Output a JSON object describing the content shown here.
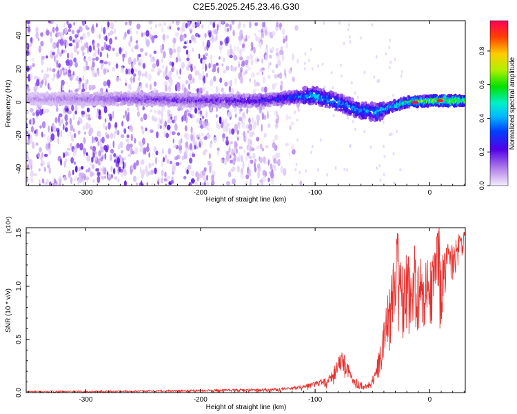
{
  "title": "C2E5.2025.245.23.46.G30",
  "chart_data": [
    {
      "type": "heatmap",
      "xlabel": "Height of straight line (km)",
      "ylabel": "Frequency (Hz)",
      "xlim": [
        -352,
        31
      ],
      "ylim": [
        -50,
        49
      ],
      "xticks": [
        -300,
        -200,
        -100,
        0
      ],
      "yticks": [
        -40,
        -20,
        0,
        20,
        40
      ],
      "colorbar": {
        "label": "Normalized spectral amplitude",
        "range": [
          0.0,
          0.98
        ],
        "ticks": [
          "0.0",
          "0.2",
          "0.4",
          "0.6",
          "0.8"
        ],
        "tick_values": [
          0.0,
          0.2,
          0.4,
          0.6,
          0.8
        ]
      },
      "ridge": {
        "description": "frequency trace of strongest amplitude",
        "height_km": [
          -352,
          -300,
          -250,
          -200,
          -150,
          -120,
          -100,
          -80,
          -60,
          -45,
          -35,
          -20,
          0,
          20,
          31
        ],
        "frequency_hz": [
          2,
          2,
          2,
          1,
          1,
          3,
          4,
          0,
          -5,
          -6,
          -3,
          0,
          1,
          1,
          1
        ],
        "amplitude": [
          0.08,
          0.12,
          0.18,
          0.2,
          0.25,
          0.35,
          0.45,
          0.4,
          0.4,
          0.45,
          0.5,
          0.55,
          0.7,
          0.75,
          0.65
        ],
        "peaks": [
          {
            "height_km": -13,
            "frequency_hz": 0,
            "amplitude": 0.98
          },
          {
            "height_km": 9,
            "frequency_hz": 1,
            "amplitude": 0.96
          }
        ]
      },
      "noise_region_km": [
        -352,
        -120
      ]
    },
    {
      "type": "line",
      "xlabel": "Height of straight line (km)",
      "ylabel": "SNR (10 * v/v)",
      "y_multiplier": "(x10⁴)",
      "xlim": [
        -352,
        31
      ],
      "ylim": [
        0,
        1.55
      ],
      "xticks": [
        -300,
        -200,
        -100,
        0
      ],
      "yticks": [
        "0.0",
        "0.5",
        "1.0",
        "1.5"
      ],
      "ytick_values": [
        0.0,
        0.5,
        1.0,
        1.5
      ],
      "series": [
        {
          "name": "SNR",
          "color": "#e8312e",
          "x": [
            -352,
            -300,
            -250,
            -200,
            -170,
            -150,
            -130,
            -120,
            -110,
            -100,
            -90,
            -85,
            -80,
            -76,
            -72,
            -68,
            -64,
            -60,
            -56,
            -52,
            -48,
            -45,
            -42,
            -40,
            -38,
            -35,
            -33,
            -30,
            -28,
            -25,
            -22,
            -20,
            -17,
            -14,
            -11,
            -8,
            -5,
            -3,
            -1,
            1,
            3,
            5,
            7,
            10,
            13,
            16,
            20,
            24,
            28,
            31
          ],
          "y": [
            0.01,
            0.01,
            0.015,
            0.02,
            0.03,
            0.025,
            0.03,
            0.04,
            0.06,
            0.09,
            0.12,
            0.18,
            0.28,
            0.33,
            0.22,
            0.14,
            0.09,
            0.06,
            0.05,
            0.06,
            0.12,
            0.25,
            0.35,
            0.55,
            0.75,
            1.0,
            0.85,
            1.05,
            1.52,
            0.9,
            0.75,
            1.1,
            0.85,
            1.3,
            0.7,
            1.2,
            0.45,
            0.9,
            1.0,
            0.7,
            1.1,
            1.4,
            1.57,
            0.6,
            1.15,
            1.35,
            1.2,
            1.4,
            1.45,
            1.5
          ],
          "envelope": {
            "x": [
              -352,
              -250,
              -150,
              -120,
              -100,
              -90,
              -85,
              -80,
              -76,
              -72,
              -66,
              -60,
              -55,
              -50,
              -46,
              -42,
              -38,
              -35,
              -32,
              -28,
              -24,
              -20,
              -16,
              -12,
              -8,
              -4,
              0,
              4,
              8,
              12,
              16,
              20,
              24,
              28,
              31
            ],
            "upper": [
              0.015,
              0.02,
              0.035,
              0.05,
              0.1,
              0.14,
              0.2,
              0.32,
              0.42,
              0.28,
              0.16,
              0.1,
              0.09,
              0.15,
              0.3,
              0.5,
              0.8,
              1.05,
              1.2,
              1.52,
              1.25,
              1.3,
              1.25,
              1.5,
              1.3,
              1.3,
              1.2,
              1.35,
              1.57,
              1.3,
              1.4,
              1.45,
              1.48,
              1.52,
              1.55
            ],
            "lower": [
              0.0,
              0.0,
              0.0,
              0.01,
              0.02,
              0.03,
              0.05,
              0.08,
              0.1,
              0.07,
              0.04,
              0.03,
              0.03,
              0.05,
              0.08,
              0.12,
              0.2,
              0.3,
              0.35,
              0.4,
              0.45,
              0.5,
              0.5,
              0.6,
              0.55,
              0.65,
              0.6,
              0.75,
              0.55,
              0.8,
              0.95,
              1.05,
              1.15,
              1.25,
              1.3
            ]
          }
        }
      ]
    }
  ]
}
